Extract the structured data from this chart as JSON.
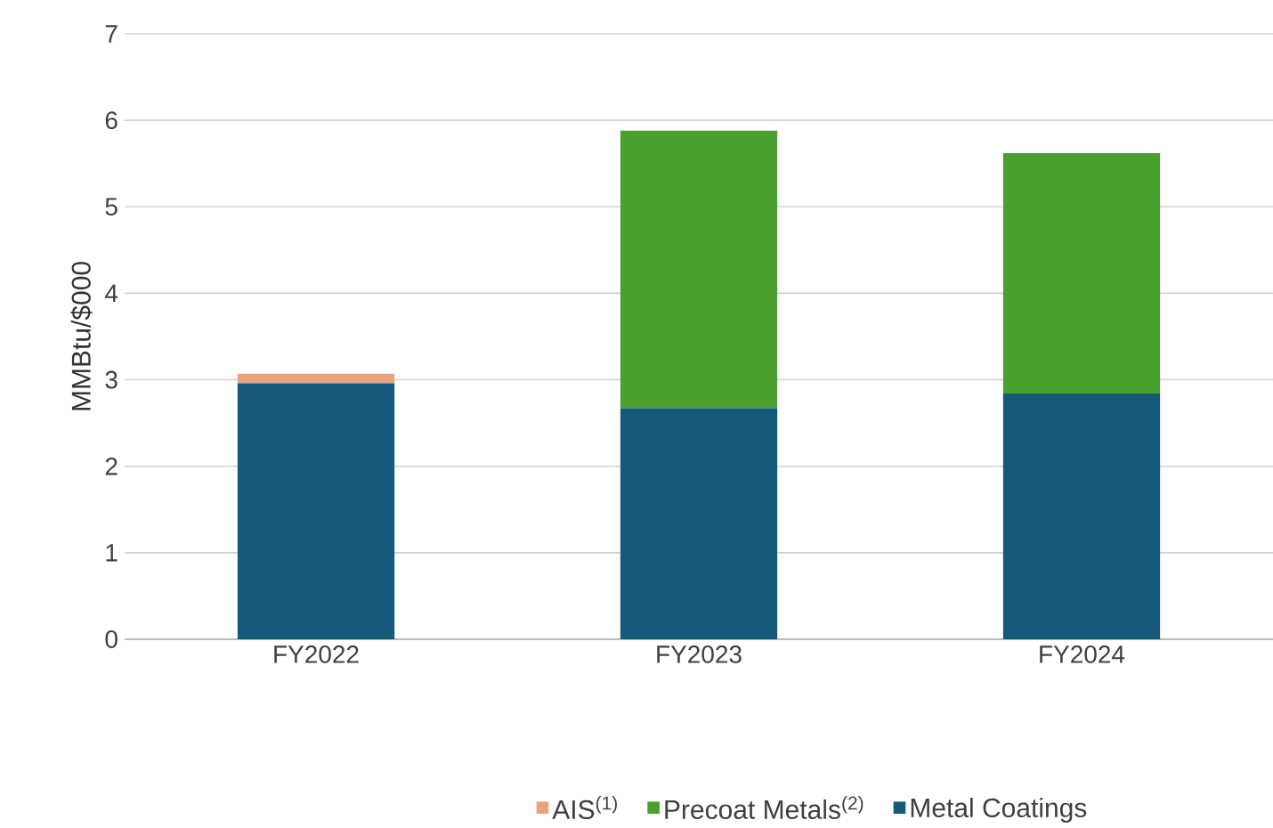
{
  "chart_data": {
    "type": "bar",
    "stacked": true,
    "ylabel": "MMBtu/$000",
    "categories": [
      "FY2022",
      "FY2023",
      "FY2024"
    ],
    "series": [
      {
        "name": "Metal Coatings",
        "color": "#155a78",
        "values": [
          2.96,
          2.67,
          2.84
        ]
      },
      {
        "name": "Precoat Metals$^{(2)}$",
        "color": "#4a9f2e",
        "values": [
          0,
          3.21,
          2.78
        ]
      },
      {
        "name": "AIS$^{(1)}$",
        "color": "#e8a37c",
        "values": [
          0.11,
          0,
          0
        ]
      }
    ],
    "ylim": [
      0,
      7
    ],
    "yticks": [
      0,
      1,
      2,
      3,
      4,
      5,
      6,
      7
    ],
    "grid": "y",
    "legend": "bottom"
  }
}
